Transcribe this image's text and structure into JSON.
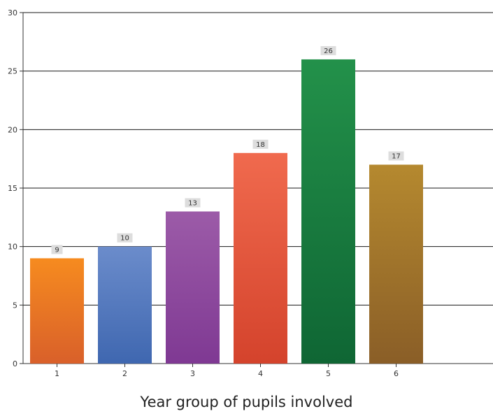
{
  "chart_data": {
    "type": "bar",
    "title": "",
    "xlabel": "Year group of pupils involved",
    "ylabel": "",
    "categories": [
      "1",
      "2",
      "3",
      "4",
      "5",
      "6"
    ],
    "values": [
      9,
      10,
      13,
      18,
      26,
      17
    ],
    "data_labels": [
      "9",
      "10",
      "13",
      "18",
      "26",
      "17"
    ],
    "ylim": [
      0,
      30
    ],
    "yticks": [
      "0",
      "5",
      "10",
      "15",
      "20",
      "25",
      "30"
    ],
    "grid": true,
    "legend": "none",
    "colors": [
      [
        "#F68B1F",
        "#D9602A"
      ],
      [
        "#6B8CCB",
        "#3F67B0"
      ],
      [
        "#9C5BA8",
        "#7F3993"
      ],
      [
        "#F06A4E",
        "#D4432C"
      ],
      [
        "#23914A",
        "#0F6634"
      ],
      [
        "#B5892F",
        "#8A5E27"
      ]
    ]
  }
}
